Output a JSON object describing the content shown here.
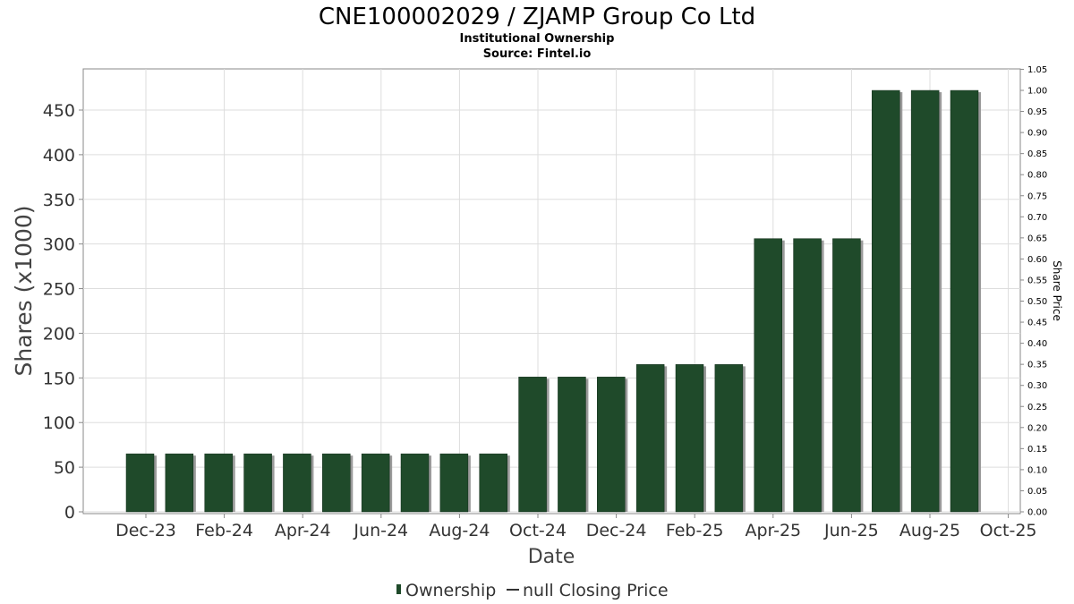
{
  "chart_data": {
    "type": "bar",
    "title": "CNE100002029 / ZJAMP Group Co Ltd",
    "subtitle_lines": [
      "Institutional Ownership",
      "Source: Fintel.io"
    ],
    "xlabel": "Date",
    "ylabel": "Shares (x1000)",
    "y2label": "Share Price",
    "ylim": [
      0,
      500
    ],
    "y2lim": [
      0,
      1.05
    ],
    "yticks": [
      "0",
      "50",
      "100",
      "150",
      "200",
      "250",
      "300",
      "350",
      "400",
      "450"
    ],
    "y2ticks": [
      "0.00",
      "0.05",
      "0.10",
      "0.15",
      "0.20",
      "0.25",
      "0.30",
      "0.35",
      "0.40",
      "0.45",
      "0.50",
      "0.55",
      "0.60",
      "0.65",
      "0.70",
      "0.75",
      "0.80",
      "0.85",
      "0.90",
      "0.95",
      "1.00",
      "1.05"
    ],
    "xticks": [
      "Dec-23",
      "Feb-24",
      "Apr-24",
      "Jun-24",
      "Aug-24",
      "Oct-24",
      "Dec-24",
      "Feb-25",
      "Apr-25",
      "Jun-25",
      "Aug-25",
      "Oct-25"
    ],
    "grid": true,
    "legend_position": "bottom",
    "series": [
      {
        "name": "Ownership",
        "color": "#1f4a2a",
        "values": [
          65,
          65,
          65,
          65,
          65,
          65,
          65,
          65,
          65,
          65,
          151,
          151,
          151,
          165,
          165,
          165,
          306,
          306,
          306,
          472,
          472,
          472
        ]
      }
    ],
    "legend_entries": [
      "Ownership",
      "null Closing Price"
    ]
  }
}
